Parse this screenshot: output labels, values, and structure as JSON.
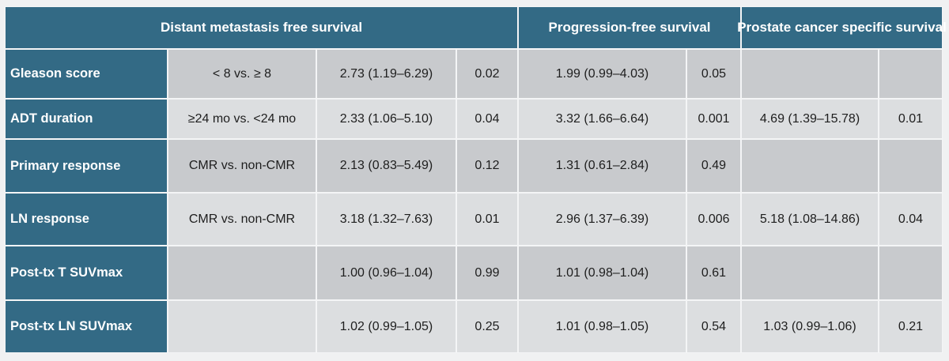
{
  "table": {
    "header": [
      "Distant metastasis free survival",
      "Progression-free survival",
      "Prostate cancer specific survival"
    ],
    "rows": [
      [
        "Gleason score",
        "< 8 vs. ≥ 8",
        "2.73 (1.19–6.29)",
        "0.02",
        "1.99 (0.99–4.03)",
        "0.05",
        null,
        null
      ],
      [
        "ADT duration",
        "≥24 mo vs. <24 mo",
        "2.33 (1.06–5.10)",
        "0.04",
        "3.32 (1.66–6.64)",
        "0.001",
        "4.69 (1.39–15.78)",
        "0.01"
      ],
      [
        "Primary response",
        "CMR vs. non-CMR",
        "2.13 (0.83–5.49)",
        "0.12",
        "1.31 (0.61–2.84)",
        "0.49",
        null,
        null
      ],
      [
        "LN response",
        "CMR vs. non-CMR",
        "3.18 (1.32–7.63)",
        "0.01",
        "2.96 (1.37–6.39)",
        "0.006",
        "5.18 (1.08–14.86)",
        "0.04"
      ],
      [
        "Post-tx T SUVmax",
        null,
        "1.00 (0.96–1.04)",
        "0.99",
        "1.01 (0.98–1.04)",
        "0.61",
        null,
        null
      ],
      [
        "Post-tx LN SUVmax",
        null,
        "1.02 (0.99–1.05)",
        "0.25",
        "1.01 (0.98–1.05)",
        "0.54",
        "1.03 (0.99–1.06)",
        "0.21"
      ]
    ]
  }
}
